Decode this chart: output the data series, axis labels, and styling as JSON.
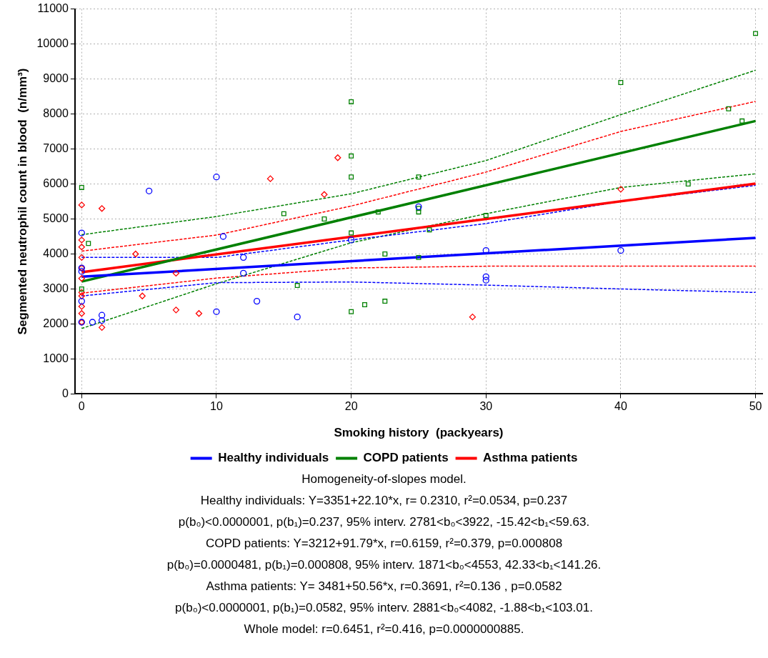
{
  "chart_data": {
    "type": "scatter",
    "xlabel": "Smoking history  (packyears)",
    "ylabel": "Segmented neutrophil count in blood  (n/mm³)",
    "xlim": [
      -0.5,
      50.5
    ],
    "xticks": [
      0,
      10,
      20,
      30,
      40,
      50
    ],
    "ylim": [
      0,
      11000
    ],
    "yticks": [
      0,
      1000,
      2000,
      3000,
      4000,
      5000,
      6000,
      7000,
      8000,
      9000,
      10000,
      11000
    ],
    "grid": true,
    "legend": "bottom",
    "series": [
      {
        "name": "Healthy individuals",
        "color": "#0000ff",
        "marker": "circle",
        "x": [
          0,
          0,
          0,
          0,
          0,
          0.8,
          1.5,
          1.5,
          5,
          10,
          10,
          10.5,
          12,
          12,
          13,
          16,
          20,
          25,
          30,
          30,
          30,
          40
        ],
        "values": [
          4600,
          3600,
          3500,
          2650,
          2050,
          2050,
          2250,
          2100,
          5800,
          6200,
          2350,
          4500,
          3900,
          3450,
          2650,
          2200,
          4400,
          5350,
          4100,
          3350,
          3250,
          4100
        ]
      },
      {
        "name": "COPD patients",
        "color": "#008000",
        "marker": "square",
        "x": [
          0,
          0.5,
          0,
          15,
          16,
          18,
          20,
          20,
          20,
          20,
          20,
          21,
          22,
          22.5,
          22.5,
          25,
          25,
          25,
          25,
          25.8,
          30,
          40,
          45,
          48,
          49,
          50
        ],
        "values": [
          5900,
          4300,
          3000,
          5150,
          3100,
          5000,
          8350,
          6800,
          6200,
          4600,
          2350,
          2550,
          5200,
          2650,
          4000,
          6200,
          5300,
          5200,
          3900,
          4690,
          5100,
          8900,
          6000,
          8150,
          7800,
          10300
        ]
      },
      {
        "name": "Asthma patients",
        "color": "#ff0000",
        "marker": "diamond",
        "x": [
          0,
          0,
          0,
          0,
          0,
          0,
          0,
          0,
          0,
          0,
          0,
          1.5,
          1.5,
          4,
          4.5,
          7,
          7,
          8.7,
          14,
          18,
          19,
          29,
          40
        ],
        "values": [
          5400,
          4400,
          4200,
          3900,
          3600,
          3300,
          2900,
          2800,
          2500,
          2300,
          2050,
          5300,
          1900,
          4000,
          2800,
          3450,
          2400,
          2300,
          6150,
          5700,
          6750,
          2200,
          5850
        ]
      },
      {
        "type": "line",
        "color": "#0000ff",
        "line_style": "solid",
        "x": [
          0,
          50
        ],
        "values": [
          3350,
          4460
        ]
      },
      {
        "type": "line",
        "color": "#008000",
        "line_style": "solid",
        "x": [
          0,
          50
        ],
        "values": [
          3210,
          7800
        ]
      },
      {
        "type": "line",
        "color": "#ff0000",
        "line_style": "solid",
        "x": [
          0,
          50
        ],
        "values": [
          3480,
          6010
        ]
      },
      {
        "type": "line",
        "color": "#0000ff",
        "line_style": "dashed",
        "x": [
          0,
          10,
          20,
          30,
          40,
          50
        ],
        "values": [
          3900,
          3900,
          4400,
          4870,
          5500,
          5960
        ]
      },
      {
        "type": "line",
        "color": "#0000ff",
        "line_style": "dashed",
        "x": [
          0,
          10,
          20,
          30,
          40,
          50
        ],
        "values": [
          2800,
          3180,
          3200,
          3110,
          3000,
          2900
        ]
      },
      {
        "type": "line",
        "color": "#008000",
        "line_style": "dashed",
        "x": [
          0,
          10,
          20,
          30,
          40,
          50
        ],
        "values": [
          4550,
          5070,
          5720,
          6670,
          7980,
          9250
        ]
      },
      {
        "type": "line",
        "color": "#008000",
        "line_style": "dashed",
        "x": [
          0,
          10,
          20,
          30,
          40,
          50
        ],
        "values": [
          1870,
          3150,
          4320,
          5150,
          5900,
          6290
        ]
      },
      {
        "type": "line",
        "color": "#ff0000",
        "line_style": "dashed",
        "x": [
          0,
          10,
          20,
          30,
          40,
          50
        ],
        "values": [
          4080,
          4540,
          5370,
          6340,
          7500,
          8360
        ]
      },
      {
        "type": "line",
        "color": "#ff0000",
        "line_style": "dashed",
        "x": [
          0,
          10,
          20,
          30,
          40,
          50
        ],
        "values": [
          2880,
          3310,
          3600,
          3650,
          3650,
          3650
        ]
      }
    ],
    "annotations": [
      "Homogeneity-of-slopes model.",
      "Healthy individuals: Y=3351+22.10*x, r= 0.2310, r²=0.0534, p=0.237",
      "p(b₀)<0.0000001, p(b₁)=0.237, 95% interv. 2781<b₀<3922, -15.42<b₁<59.63.",
      "COPD patients: Y=3212+91.79*x, r=0.6159, r²=0.379, p=0.000808",
      "p(b₀)=0.0000481, p(b₁)=0.000808, 95% interv. 1871<b₀<4553, 42.33<b₁<141.26.",
      "Asthma patients: Y= 3481+50.56*x, r=0.3691,  r²=0.136 , p=0.0582",
      "p(b₀)<0.0000001, p(b₁)=0.0582, 95% interv. 2881<b₀<4082, -1.88<b₁<103.01.",
      "Whole model: r=0.6451, r²=0.416, p=0.0000000885."
    ]
  }
}
